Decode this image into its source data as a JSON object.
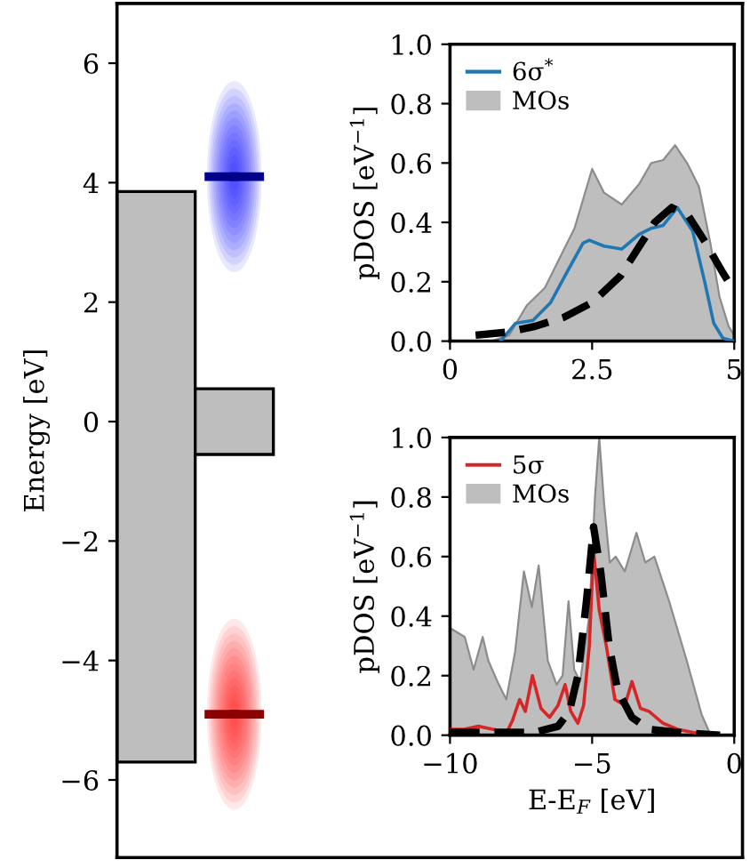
{
  "chart_data": [
    {
      "type": "bar",
      "ylabel": "Energy [eV]",
      "categories": [
        null,
        null,
        null,
        null,
        null,
        null,
        null,
        null
      ],
      "legend": false,
      "ylim": [
        -7.3,
        7
      ],
      "yticks": [
        {
          "value": -6,
          "label": "−6"
        },
        {
          "value": -4,
          "label": "−4"
        },
        {
          "value": -2,
          "label": "−2"
        },
        0,
        2,
        4,
        6
      ],
      "tick_labels": "y",
      "grid": false,
      "series": [
        {
          "type": "bar",
          "color": "#bebebe",
          "base": [
            -5.7,
            -0.55,
            null,
            null,
            null,
            null,
            null,
            null
          ],
          "values": [
            9.55,
            1.1,
            null,
            null,
            null,
            null,
            null,
            null
          ]
        },
        {
          "type": "scatter",
          "color": "#00008b",
          "marker": "square",
          "values": [
            null,
            4.1,
            null,
            null,
            null,
            null,
            null,
            null
          ]
        },
        {
          "type": "scatter",
          "color": "#8b0000",
          "marker": "square",
          "values": [
            null,
            -4.9,
            null,
            null,
            null,
            null,
            null,
            null
          ]
        }
      ]
    },
    {
      "type": "line",
      "ylabel": "pDOS [eV$^{−1}$]",
      "xlim": [
        0,
        5
      ],
      "ylim": [
        0,
        1
      ],
      "xticks": [
        0,
        2.5,
        5
      ],
      "yticks": [
        {
          "value": 0,
          "label": "0.0"
        },
        0.2,
        0.4,
        0.6,
        0.8,
        {
          "value": 1,
          "label": "1.0"
        }
      ],
      "legend": "top left",
      "grid": false,
      "series": [
        {
          "name": "6σ$^{*}$",
          "type": "line",
          "color": "#1f77b4",
          "line_style": "solid",
          "x": [
            0.89,
            1.15,
            1.46,
            1.77,
            2.08,
            2.34,
            2.45,
            2.71,
            3.02,
            3.33,
            3.54,
            3.75,
            4.0,
            4.27,
            4.48,
            4.64,
            4.8,
            5.0
          ],
          "values": [
            0,
            0.06,
            0.07,
            0.13,
            0.24,
            0.33,
            0.34,
            0.32,
            0.31,
            0.36,
            0.38,
            0.39,
            0.45,
            0.37,
            0.2,
            0.06,
            0.01,
            0.0
          ]
        },
        {
          "name": "MOs",
          "type": "area",
          "color": "#bebebe",
          "x": [
            0.73,
            1.04,
            1.35,
            1.67,
            1.98,
            2.19,
            2.5,
            2.71,
            3.02,
            3.33,
            3.54,
            3.75,
            3.96,
            4.17,
            4.38,
            4.58,
            4.74,
            4.9,
            5.0
          ],
          "values": [
            0,
            0.02,
            0.12,
            0.18,
            0.3,
            0.38,
            0.58,
            0.5,
            0.46,
            0.53,
            0.6,
            0.61,
            0.66,
            0.6,
            0.52,
            0.33,
            0.15,
            0.05,
            0.02
          ]
        },
        {
          "type": "line",
          "color": "#000000",
          "line_style": "dashed",
          "x": [
            0.45,
            1.0,
            1.5,
            2.0,
            2.5,
            3.0,
            3.3,
            3.6,
            3.9,
            4.2,
            4.5,
            4.8,
            5.0
          ],
          "values": [
            0.02,
            0.03,
            0.05,
            0.08,
            0.13,
            0.22,
            0.31,
            0.4,
            0.45,
            0.42,
            0.33,
            0.23,
            0.17
          ]
        }
      ]
    },
    {
      "type": "line",
      "ylabel": "pDOS [eV$^{−1}$]",
      "xlabel": "E-E$_{F}$ [eV]",
      "xlim": [
        -10,
        0
      ],
      "ylim": [
        0,
        1
      ],
      "xticks": [
        {
          "value": -10,
          "label": "−10"
        },
        {
          "value": -5,
          "label": "−5"
        },
        0
      ],
      "yticks": [
        {
          "value": 0,
          "label": "0.0"
        },
        0.2,
        0.4,
        0.6,
        0.8,
        {
          "value": 1,
          "label": "1.0"
        }
      ],
      "legend": "top left",
      "grid": false,
      "series": [
        {
          "name": "5σ",
          "type": "line",
          "color": "#d62728",
          "line_style": "solid",
          "x": [
            -10,
            -9.5,
            -9.0,
            -8.5,
            -8.0,
            -7.8,
            -7.55,
            -7.35,
            -7.1,
            -6.8,
            -6.5,
            -6.2,
            -5.95,
            -5.75,
            -5.5,
            -5.3,
            -5.1,
            -4.95,
            -4.75,
            -4.5,
            -4.2,
            -3.85,
            -3.6,
            -3.3,
            -3.0,
            -2.5,
            -2.0,
            -1.5,
            -1.0
          ],
          "values": [
            0.02,
            0.02,
            0.03,
            0.02,
            0.01,
            0.05,
            0.12,
            0.08,
            0.2,
            0.09,
            0.06,
            0.1,
            0.17,
            0.08,
            0.04,
            0.1,
            0.3,
            0.62,
            0.42,
            0.3,
            0.12,
            0.1,
            0.18,
            0.09,
            0.08,
            0.04,
            0.02,
            0.01,
            0.0
          ]
        },
        {
          "name": "MOs",
          "type": "area",
          "color": "#bebebe",
          "x": [
            -10,
            -9.48,
            -9.17,
            -8.85,
            -8.65,
            -8.33,
            -8.02,
            -7.71,
            -7.4,
            -7.12,
            -6.88,
            -6.56,
            -6.25,
            -6.04,
            -5.83,
            -5.63,
            -5.42,
            -5.1,
            -4.9,
            -4.75,
            -4.58,
            -4.38,
            -4.17,
            -3.85,
            -3.44,
            -3.13,
            -2.81,
            -2.29,
            -1.67,
            -1.15,
            -0.83,
            0
          ],
          "values": [
            0.36,
            0.33,
            0.22,
            0.33,
            0.25,
            0.18,
            0.12,
            0.28,
            0.55,
            0.43,
            0.57,
            0.25,
            0.17,
            0.2,
            0.45,
            0.22,
            0.18,
            0.4,
            0.8,
            1.0,
            0.78,
            0.58,
            0.6,
            0.55,
            0.68,
            0.58,
            0.6,
            0.45,
            0.25,
            0.07,
            0.0,
            0.0
          ]
        },
        {
          "type": "line",
          "color": "#000000",
          "line_style": "dashed",
          "x": [
            -10,
            -8,
            -7,
            -6.2,
            -5.8,
            -5.5,
            -5.2,
            -4.95,
            -4.7,
            -4.4,
            -4.1,
            -3.6,
            -3.0,
            -2.0,
            -0.5
          ],
          "values": [
            0.01,
            0.01,
            0.01,
            0.03,
            0.08,
            0.2,
            0.45,
            0.7,
            0.55,
            0.3,
            0.15,
            0.06,
            0.02,
            0.01,
            0.0
          ]
        }
      ]
    }
  ]
}
